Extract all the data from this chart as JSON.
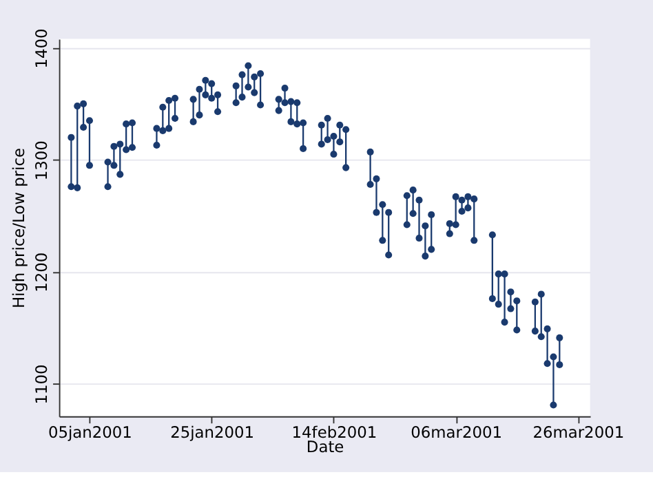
{
  "chart_data": {
    "type": "scatter",
    "xlabel": "Date",
    "ylabel": "High price/Low price",
    "x": [
      "2001-01-02",
      "2001-01-03",
      "2001-01-04",
      "2001-01-05",
      "2001-01-08",
      "2001-01-09",
      "2001-01-10",
      "2001-01-11",
      "2001-01-12",
      "2001-01-16",
      "2001-01-17",
      "2001-01-18",
      "2001-01-19",
      "2001-01-22",
      "2001-01-23",
      "2001-01-24",
      "2001-01-25",
      "2001-01-26",
      "2001-01-29",
      "2001-01-30",
      "2001-01-31",
      "2001-02-01",
      "2001-02-02",
      "2001-02-05",
      "2001-02-06",
      "2001-02-07",
      "2001-02-08",
      "2001-02-09",
      "2001-02-12",
      "2001-02-13",
      "2001-02-14",
      "2001-02-15",
      "2001-02-16",
      "2001-02-20",
      "2001-02-21",
      "2001-02-22",
      "2001-02-23",
      "2001-02-26",
      "2001-02-27",
      "2001-02-28",
      "2001-03-01",
      "2001-03-02",
      "2001-03-05",
      "2001-03-06",
      "2001-03-07",
      "2001-03-08",
      "2001-03-09",
      "2001-03-12",
      "2001-03-13",
      "2001-03-14",
      "2001-03-15",
      "2001-03-16",
      "2001-03-19",
      "2001-03-20",
      "2001-03-21",
      "2001-03-22",
      "2001-03-23"
    ],
    "series": [
      {
        "color": "#1a3a6e",
        "values": [
          1320,
          1348,
          1350,
          1335,
          1298,
          1312,
          1314,
          1332,
          1333,
          1328,
          1347,
          1353,
          1355,
          1354,
          1363,
          1371,
          1368,
          1358,
          1366,
          1376,
          1384,
          1374,
          1377,
          1354,
          1364,
          1352,
          1351,
          1333,
          1331,
          1337,
          1321,
          1331,
          1327,
          1307,
          1283,
          1260,
          1253,
          1268,
          1273,
          1264,
          1241,
          1251,
          1243,
          1267,
          1264,
          1267,
          1265,
          1233,
          1198,
          1198,
          1182,
          1174,
          1173,
          1180,
          1149,
          1124,
          1141
        ]
      },
      {
        "color": "#1a3a6e",
        "values": [
          1276,
          1275,
          1329,
          1295,
          1276,
          1295,
          1287,
          1309,
          1311,
          1313,
          1326,
          1328,
          1337,
          1334,
          1340,
          1358,
          1355,
          1343,
          1351,
          1356,
          1365,
          1360,
          1349,
          1344,
          1351,
          1334,
          1332,
          1310,
          1314,
          1318,
          1305,
          1316,
          1293,
          1278,
          1253,
          1228,
          1215,
          1242,
          1252,
          1230,
          1214,
          1220,
          1234,
          1242,
          1254,
          1257,
          1228,
          1176,
          1171,
          1155,
          1167,
          1148,
          1147,
          1142,
          1118,
          1081,
          1117
        ],
        "errors": [
          [
            1276,
            1320
          ],
          [
            1275,
            1348
          ],
          [
            1329,
            1350
          ],
          [
            1295,
            1335
          ],
          [
            1276,
            1298
          ],
          [
            1295,
            1312
          ],
          [
            1287,
            1314
          ],
          [
            1309,
            1332
          ],
          [
            1311,
            1333
          ],
          [
            1313,
            1328
          ],
          [
            1326,
            1347
          ],
          [
            1328,
            1353
          ],
          [
            1337,
            1355
          ],
          [
            1334,
            1354
          ],
          [
            1340,
            1363
          ],
          [
            1358,
            1371
          ],
          [
            1355,
            1368
          ],
          [
            1343,
            1358
          ],
          [
            1351,
            1366
          ],
          [
            1356,
            1376
          ],
          [
            1365,
            1384
          ],
          [
            1360,
            1374
          ],
          [
            1349,
            1377
          ],
          [
            1344,
            1354
          ],
          [
            1351,
            1364
          ],
          [
            1334,
            1352
          ],
          [
            1332,
            1351
          ],
          [
            1310,
            1333
          ],
          [
            1314,
            1331
          ],
          [
            1318,
            1337
          ],
          [
            1305,
            1321
          ],
          [
            1316,
            1331
          ],
          [
            1293,
            1327
          ],
          [
            1278,
            1307
          ],
          [
            1253,
            1283
          ],
          [
            1228,
            1260
          ],
          [
            1215,
            1253
          ],
          [
            1242,
            1268
          ],
          [
            1252,
            1273
          ],
          [
            1230,
            1264
          ],
          [
            1214,
            1241
          ],
          [
            1220,
            1251
          ],
          [
            1234,
            1243
          ],
          [
            1242,
            1267
          ],
          [
            1254,
            1264
          ],
          [
            1257,
            1267
          ],
          [
            1228,
            1265
          ],
          [
            1176,
            1233
          ],
          [
            1171,
            1198
          ],
          [
            1155,
            1198
          ],
          [
            1167,
            1182
          ],
          [
            1148,
            1174
          ],
          [
            1147,
            1173
          ],
          [
            1142,
            1180
          ],
          [
            1118,
            1149
          ],
          [
            1081,
            1124
          ],
          [
            1117,
            1141
          ]
        ]
      }
    ],
    "marker": "circle",
    "xlim": [
      "2000-12-31",
      "2001-03-28"
    ],
    "xticks": [
      {
        "value": "2001-01-05",
        "label": "05jan2001"
      },
      {
        "value": "2001-01-25",
        "label": "25jan2001"
      },
      {
        "value": "2001-02-14",
        "label": "14feb2001"
      },
      {
        "value": "2001-03-06",
        "label": "06mar2001"
      },
      {
        "value": "2001-03-26",
        "label": "26mar2001"
      }
    ],
    "ylim": [
      1071,
      1408
    ],
    "yticks": [
      1100,
      1200,
      1300,
      1400
    ],
    "grid": "y"
  }
}
